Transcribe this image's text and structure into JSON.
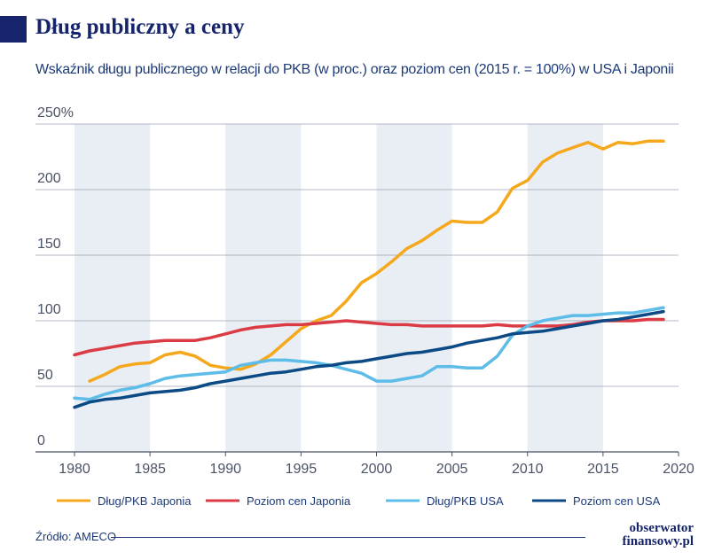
{
  "header": {
    "title": "Dług publiczny a ceny",
    "subtitle": "Wskaźnik długu publicznego w relacji do PKB (w proc.) oraz poziom cen (2015 r. = 100%) w USA i Japonii"
  },
  "footer": {
    "source": "Źródło: AMECO",
    "brand_line1": "obserwator",
    "brand_line2": "finansowy.pl"
  },
  "colors": {
    "navy": "#16256b",
    "orange": "#f5a81c",
    "red": "#db3b45",
    "lightblue": "#5dbce8",
    "darkblue": "#0c4a86",
    "band": "#e9eef5",
    "grid": "#9aa3b2"
  },
  "chart_data": {
    "type": "line",
    "title": "Wskaźnik długu publicznego w relacji do PKB (w proc.) oraz poziom cen (2015 r. = 100%) w USA i Japonii",
    "xlabel": "",
    "ylabel": "",
    "xlim": [
      1980,
      2020
    ],
    "ylim": [
      0,
      250
    ],
    "yticks": [
      0,
      50,
      100,
      150,
      200,
      250
    ],
    "ytick_labels": [
      "0",
      "50",
      "100",
      "150",
      "200",
      "250%"
    ],
    "xticks": [
      1980,
      1985,
      1990,
      1995,
      2000,
      2005,
      2010,
      2015,
      2020
    ],
    "shaded_periods": [
      [
        1980,
        1985
      ],
      [
        1990,
        1995
      ],
      [
        2000,
        2005
      ],
      [
        2010,
        2015
      ]
    ],
    "grid": true,
    "legend_position": "bottom",
    "series": [
      {
        "name": "Dług/PKB Japonia",
        "color": "#f5a81c",
        "x": [
          1981,
          1982,
          1983,
          1984,
          1985,
          1986,
          1987,
          1988,
          1989,
          1990,
          1991,
          1992,
          1993,
          1994,
          1995,
          1996,
          1997,
          1998,
          1999,
          2000,
          2001,
          2002,
          2003,
          2004,
          2005,
          2006,
          2007,
          2008,
          2009,
          2010,
          2011,
          2012,
          2013,
          2014,
          2015,
          2016,
          2017,
          2018,
          2019
        ],
        "values": [
          54,
          59,
          65,
          67,
          68,
          74,
          76,
          73,
          66,
          64,
          63,
          67,
          74,
          84,
          94,
          100,
          104,
          115,
          129,
          136,
          145,
          155,
          161,
          169,
          176,
          175,
          175,
          183,
          201,
          207,
          221,
          228,
          232,
          236,
          231,
          236,
          235,
          237,
          237
        ]
      },
      {
        "name": "Poziom cen Japonia",
        "color": "#db3b45",
        "x": [
          1980,
          1981,
          1982,
          1983,
          1984,
          1985,
          1986,
          1987,
          1988,
          1989,
          1990,
          1991,
          1992,
          1993,
          1994,
          1995,
          1996,
          1997,
          1998,
          1999,
          2000,
          2001,
          2002,
          2003,
          2004,
          2005,
          2006,
          2007,
          2008,
          2009,
          2010,
          2011,
          2012,
          2013,
          2014,
          2015,
          2016,
          2017,
          2018,
          2019
        ],
        "values": [
          74,
          77,
          79,
          81,
          83,
          84,
          85,
          85,
          85,
          87,
          90,
          93,
          95,
          96,
          97,
          97,
          98,
          99,
          100,
          99,
          98,
          97,
          97,
          96,
          96,
          96,
          96,
          96,
          97,
          96,
          96,
          96,
          96,
          97,
          99,
          100,
          100,
          100,
          101,
          101
        ]
      },
      {
        "name": "Dług/PKB USA",
        "color": "#5dbce8",
        "x": [
          1980,
          1981,
          1982,
          1983,
          1984,
          1985,
          1986,
          1987,
          1988,
          1989,
          1990,
          1991,
          1992,
          1993,
          1994,
          1995,
          1996,
          1997,
          1998,
          1999,
          2000,
          2001,
          2002,
          2003,
          2004,
          2005,
          2006,
          2007,
          2008,
          2009,
          2010,
          2011,
          2012,
          2013,
          2014,
          2015,
          2016,
          2017,
          2018,
          2019
        ],
        "values": [
          41,
          40,
          44,
          47,
          49,
          52,
          56,
          58,
          59,
          60,
          61,
          66,
          68,
          70,
          70,
          69,
          68,
          66,
          63,
          60,
          54,
          54,
          56,
          58,
          65,
          65,
          64,
          64,
          73,
          89,
          96,
          100,
          102,
          104,
          104,
          105,
          106,
          106,
          108,
          110
        ]
      },
      {
        "name": "Poziom cen USA",
        "color": "#0c4a86",
        "x": [
          1980,
          1981,
          1982,
          1983,
          1984,
          1985,
          1986,
          1987,
          1988,
          1989,
          1990,
          1991,
          1992,
          1993,
          1994,
          1995,
          1996,
          1997,
          1998,
          1999,
          2000,
          2001,
          2002,
          2003,
          2004,
          2005,
          2006,
          2007,
          2008,
          2009,
          2010,
          2011,
          2012,
          2013,
          2014,
          2015,
          2016,
          2017,
          2018,
          2019
        ],
        "values": [
          34,
          38,
          40,
          41,
          43,
          45,
          46,
          47,
          49,
          52,
          54,
          56,
          58,
          60,
          61,
          63,
          65,
          66,
          68,
          69,
          71,
          73,
          75,
          76,
          78,
          80,
          83,
          85,
          87,
          90,
          91,
          92,
          94,
          96,
          98,
          100,
          101,
          103,
          105,
          107
        ]
      }
    ]
  }
}
